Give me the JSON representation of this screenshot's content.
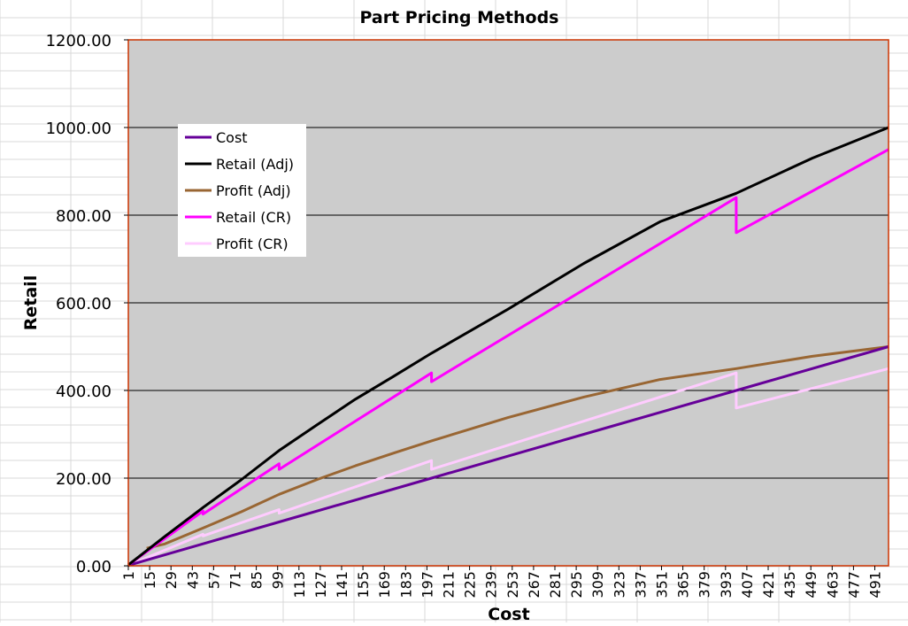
{
  "chart_data": {
    "type": "line",
    "title": "Part Pricing Methods",
    "xlabel": "Cost",
    "ylabel": "Retail",
    "x_tick_labels": [
      "1",
      "15",
      "29",
      "43",
      "57",
      "71",
      "85",
      "99",
      "113",
      "127",
      "141",
      "155",
      "169",
      "183",
      "197",
      "211",
      "225",
      "239",
      "253",
      "267",
      "281",
      "295",
      "309",
      "323",
      "337",
      "351",
      "365",
      "379",
      "393",
      "407",
      "421",
      "435",
      "449",
      "463",
      "477",
      "491"
    ],
    "x_range": [
      1,
      500
    ],
    "y_tick_labels": [
      "0.00",
      "200.00",
      "400.00",
      "600.00",
      "800.00",
      "1000.00",
      "1200.00"
    ],
    "ylim": [
      0,
      1200
    ],
    "grid": true,
    "legend_position": "upper-left inside plot",
    "plot_background": "#cccccc",
    "plot_border_color": "#cc3300",
    "series": [
      {
        "name": "Cost",
        "color": "#660099",
        "x": [
          1,
          100,
          200,
          300,
          400,
          500
        ],
        "values": [
          1,
          100,
          200,
          300,
          400,
          500
        ]
      },
      {
        "name": "Retail (Adj)",
        "color": "#000000",
        "x": [
          1,
          25,
          50,
          75,
          100,
          125,
          150,
          175,
          200,
          250,
          300,
          350,
          400,
          450,
          500
        ],
        "values": [
          2,
          67,
          133,
          196,
          263,
          322,
          380,
          432,
          485,
          585,
          690,
          785,
          850,
          930,
          1000
        ]
      },
      {
        "name": "Profit (Adj)",
        "color": "#996633",
        "x": [
          13,
          25,
          50,
          75,
          100,
          125,
          150,
          175,
          200,
          250,
          300,
          350,
          400,
          450,
          500
        ],
        "values": [
          40,
          50,
          86,
          123,
          163,
          197,
          228,
          257,
          285,
          338,
          385,
          425,
          450,
          478,
          500
        ]
      },
      {
        "name": "Retail (CR)",
        "color": "#ff00ff",
        "x": [
          1,
          50,
          50,
          100,
          100,
          200,
          200,
          400,
          400,
          500
        ],
        "values": [
          2,
          125,
          118,
          233,
          220,
          440,
          420,
          840,
          760,
          950
        ]
      },
      {
        "name": "Profit (CR)",
        "color": "#ffccff",
        "x": [
          1,
          50,
          50,
          100,
          100,
          200,
          200,
          400,
          400,
          500
        ],
        "values": [
          1,
          72,
          68,
          128,
          120,
          240,
          220,
          440,
          360,
          450
        ]
      }
    ]
  }
}
